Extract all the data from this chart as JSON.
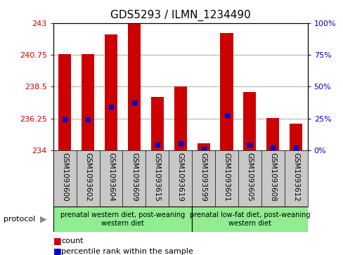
{
  "title": "GDS5293 / ILMN_1234490",
  "samples": [
    "GSM1093600",
    "GSM1093602",
    "GSM1093604",
    "GSM1093609",
    "GSM1093615",
    "GSM1093619",
    "GSM1093599",
    "GSM1093601",
    "GSM1093605",
    "GSM1093608",
    "GSM1093612"
  ],
  "bar_tops": [
    240.8,
    240.8,
    242.2,
    243.0,
    237.8,
    238.5,
    234.5,
    242.3,
    238.1,
    236.3,
    235.9
  ],
  "blue_dots": [
    236.2,
    236.2,
    237.1,
    237.4,
    234.4,
    234.5,
    234.1,
    236.5,
    234.4,
    234.2,
    234.2
  ],
  "ymin": 234,
  "ymax": 243,
  "yticks_left": [
    234,
    236.25,
    238.5,
    240.75,
    243
  ],
  "yticks_right": [
    0,
    25,
    50,
    75,
    100
  ],
  "bar_color": "#CC0000",
  "dot_color": "#0000CC",
  "bar_width": 0.55,
  "group1_label": "prenatal western diet, post-weaning\nwestern diet",
  "group1_n": 6,
  "group1_color": "#90EE90",
  "group2_label": "prenatal low-fat diet, post-weaning\nwestern diet",
  "group2_n": 5,
  "group2_color": "#90EE90",
  "xtick_bg": "#C8C8C8",
  "protocol_label": "protocol",
  "legend_count": "count",
  "legend_percentile": "percentile rank within the sample",
  "background_color": "#FFFFFF",
  "left_tick_color": "#CC0000",
  "right_tick_color": "#0000CC",
  "title_fontsize": 11,
  "tick_fontsize": 8,
  "xtick_fontsize": 7.5
}
